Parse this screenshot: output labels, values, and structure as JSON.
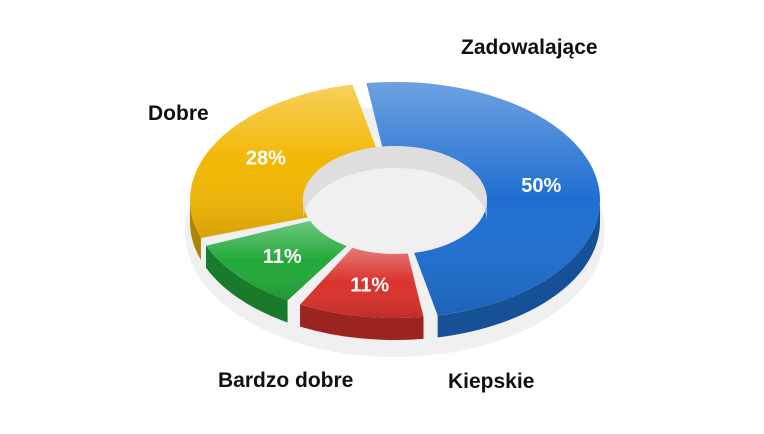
{
  "chart_data": {
    "type": "pie",
    "style": "3d-donut",
    "title": "",
    "legend": "none",
    "slices": [
      {
        "label": "Zadowalające",
        "value": 50,
        "value_label": "50%",
        "color": "#1f6fd1"
      },
      {
        "label": "Kiepskie",
        "value": 11,
        "value_label": "11%",
        "color": "#d9322c"
      },
      {
        "label": "Bardzo dobre",
        "value": 11,
        "value_label": "11%",
        "color": "#22a93a"
      },
      {
        "label": "Dobre",
        "value": 28,
        "value_label": "28%",
        "color": "#f2b705"
      }
    ]
  }
}
